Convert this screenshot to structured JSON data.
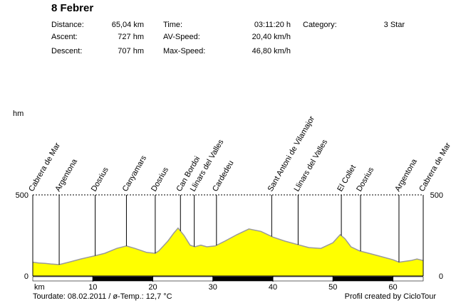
{
  "title": "8 Febrer",
  "stats": {
    "distance_label": "Distance:",
    "distance_value": "65,04 km",
    "ascent_label": "Ascent:",
    "ascent_value": "727 hm",
    "descent_label": "Descent:",
    "descent_value": "707 hm",
    "time_label": "Time:",
    "time_value": "03:11:20 h",
    "avspeed_label": "AV-Speed:",
    "avspeed_value": "20,40 km/h",
    "maxspeed_label": "Max-Speed:",
    "maxspeed_value": "46,80 km/h",
    "category_label": "Category:",
    "category_value": "3 Star"
  },
  "footer": {
    "tourdate": "Tourdate: 08.02.2011  /  ø-Temp.: 12,7 °C",
    "credit": "Profil created by CicloTour"
  },
  "colors": {
    "fill": "#ffff00",
    "line": "#9a9a9a",
    "axis": "#000000"
  },
  "chart_data": {
    "type": "area",
    "ylabel": "hm",
    "xlabel": "km",
    "xlim": [
      0,
      65.04
    ],
    "ylim": [
      0,
      500
    ],
    "xticks": [
      10,
      20,
      30,
      40,
      50,
      60
    ],
    "yticks": [
      0,
      500
    ],
    "profile": [
      {
        "x": 0,
        "y": 85
      },
      {
        "x": 1,
        "y": 80
      },
      {
        "x": 2,
        "y": 78
      },
      {
        "x": 3,
        "y": 74
      },
      {
        "x": 4.4,
        "y": 70
      },
      {
        "x": 6,
        "y": 85
      },
      {
        "x": 8,
        "y": 105
      },
      {
        "x": 10.4,
        "y": 125
      },
      {
        "x": 12,
        "y": 140
      },
      {
        "x": 14,
        "y": 170
      },
      {
        "x": 15.6,
        "y": 185
      },
      {
        "x": 17,
        "y": 170
      },
      {
        "x": 19,
        "y": 145
      },
      {
        "x": 20.4,
        "y": 140
      },
      {
        "x": 21,
        "y": 155
      },
      {
        "x": 22.5,
        "y": 215
      },
      {
        "x": 23.5,
        "y": 265
      },
      {
        "x": 24.2,
        "y": 295
      },
      {
        "x": 25.2,
        "y": 250
      },
      {
        "x": 26.2,
        "y": 190
      },
      {
        "x": 27,
        "y": 180
      },
      {
        "x": 28,
        "y": 190
      },
      {
        "x": 29,
        "y": 180
      },
      {
        "x": 30.4,
        "y": 185
      },
      {
        "x": 32,
        "y": 215
      },
      {
        "x": 34,
        "y": 255
      },
      {
        "x": 36,
        "y": 290
      },
      {
        "x": 38,
        "y": 275
      },
      {
        "x": 40,
        "y": 240
      },
      {
        "x": 42,
        "y": 215
      },
      {
        "x": 44.5,
        "y": 190
      },
      {
        "x": 46,
        "y": 175
      },
      {
        "x": 48,
        "y": 170
      },
      {
        "x": 50,
        "y": 205
      },
      {
        "x": 51.2,
        "y": 255
      },
      {
        "x": 52,
        "y": 230
      },
      {
        "x": 53,
        "y": 180
      },
      {
        "x": 54.4,
        "y": 155
      },
      {
        "x": 56,
        "y": 140
      },
      {
        "x": 58,
        "y": 120
      },
      {
        "x": 60,
        "y": 100
      },
      {
        "x": 61,
        "y": 85
      },
      {
        "x": 63,
        "y": 95
      },
      {
        "x": 64,
        "y": 105
      },
      {
        "x": 65.04,
        "y": 95
      }
    ],
    "waypoints": [
      {
        "name": "Cabrera de Mar",
        "km": 0
      },
      {
        "name": "Argentona",
        "km": 4.4
      },
      {
        "name": "Dosrius",
        "km": 10.4
      },
      {
        "name": "Canyamars",
        "km": 15.6
      },
      {
        "name": "Dosrius",
        "km": 20.4
      },
      {
        "name": "Can Bordoi",
        "km": 24.6
      },
      {
        "name": "Llinars del Valles",
        "km": 26.9
      },
      {
        "name": "Cardedeu",
        "km": 30.6
      },
      {
        "name": "Sant Antoni de Vilamajor",
        "km": 39.8
      },
      {
        "name": "Llinars del Valles",
        "km": 44.2
      },
      {
        "name": "El Collet",
        "km": 51.4
      },
      {
        "name": "Dosrius",
        "km": 54.6
      },
      {
        "name": "Argentona",
        "km": 61.0
      },
      {
        "name": "Cabrera de Mar",
        "km": 65.04
      }
    ]
  }
}
